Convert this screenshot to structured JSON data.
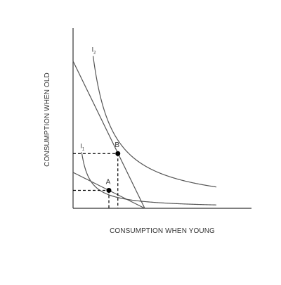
{
  "chart_data": {
    "type": "line",
    "title": "",
    "xlabel": "CONSUMPTION WHEN YOUNG",
    "ylabel": "CONSUMPTION WHEN OLD",
    "ticks": "none",
    "grid": false,
    "colors": {
      "curve": "#555555",
      "axis": "#333333",
      "guide": "#000000"
    },
    "budget_lines": [
      {
        "id": "budget-steep",
        "from": [
          0,
          8.2
        ],
        "to": [
          4.0,
          0
        ]
      },
      {
        "id": "budget-flat",
        "from": [
          0,
          2.0
        ],
        "to": [
          4.0,
          0
        ]
      }
    ],
    "indifference_curves": [
      {
        "id": "I2",
        "label_main": "I",
        "label_sub": "2",
        "k": 9.5,
        "x_start": 1.12,
        "x_end": 8.0
      },
      {
        "id": "I1",
        "label_main": "I",
        "label_sub": "1",
        "k": 1.5,
        "x_start": 0.48,
        "x_end": 8.0
      }
    ],
    "points": [
      {
        "label": "A",
        "x": 2.0,
        "y": 1.0
      },
      {
        "label": "B",
        "x": 2.5,
        "y": 3.05
      }
    ]
  }
}
